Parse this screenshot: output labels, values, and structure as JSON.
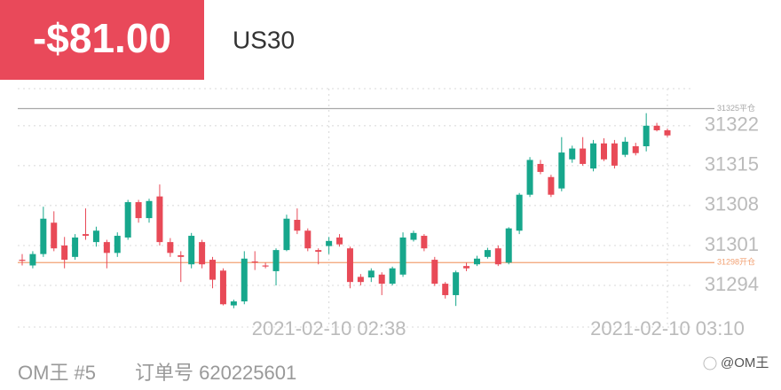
{
  "header": {
    "pnl": "-$81.00",
    "symbol": "US30"
  },
  "chart_data": {
    "type": "candlestick",
    "x": [
      "2021-02-10 02:09",
      "2021-02-10 02:10",
      "2021-02-10 02:11",
      "2021-02-10 02:12",
      "2021-02-10 02:13",
      "2021-02-10 02:14",
      "2021-02-10 02:15",
      "2021-02-10 02:16",
      "2021-02-10 02:17",
      "2021-02-10 02:18",
      "2021-02-10 02:19",
      "2021-02-10 02:20",
      "2021-02-10 02:21",
      "2021-02-10 02:22",
      "2021-02-10 02:23",
      "2021-02-10 02:24",
      "2021-02-10 02:25",
      "2021-02-10 02:26",
      "2021-02-10 02:27",
      "2021-02-10 02:28",
      "2021-02-10 02:29",
      "2021-02-10 02:30",
      "2021-02-10 02:31",
      "2021-02-10 02:32",
      "2021-02-10 02:33",
      "2021-02-10 02:34",
      "2021-02-10 02:35",
      "2021-02-10 02:36",
      "2021-02-10 02:37",
      "2021-02-10 02:38",
      "2021-02-10 02:39",
      "2021-02-10 02:40",
      "2021-02-10 02:41",
      "2021-02-10 02:42",
      "2021-02-10 02:43",
      "2021-02-10 02:44",
      "2021-02-10 02:45",
      "2021-02-10 02:46",
      "2021-02-10 02:47",
      "2021-02-10 02:48",
      "2021-02-10 02:49",
      "2021-02-10 02:50",
      "2021-02-10 02:51",
      "2021-02-10 02:52",
      "2021-02-10 02:53",
      "2021-02-10 02:54",
      "2021-02-10 02:55",
      "2021-02-10 02:56",
      "2021-02-10 02:57",
      "2021-02-10 02:58",
      "2021-02-10 02:59",
      "2021-02-10 03:00",
      "2021-02-10 03:01",
      "2021-02-10 03:02",
      "2021-02-10 03:03",
      "2021-02-10 03:04",
      "2021-02-10 03:05",
      "2021-02-10 03:06",
      "2021-02-10 03:07",
      "2021-02-10 03:08",
      "2021-02-10 03:09",
      "2021-02-10 03:10"
    ],
    "open": [
      31298.5,
      31297.5,
      31299.5,
      31305,
      31301,
      31299,
      31303,
      31301.6,
      31301.6,
      31299.7,
      31302.4,
      31308.6,
      31305.8,
      31309.6,
      31301.6,
      31299.3,
      31297.7,
      31301.6,
      31298.5,
      31296.6,
      31290.5,
      31291.2,
      31298.2,
      31297.5,
      31296.5,
      31300.2,
      31305.5,
      31303.6,
      31300.2,
      31300.9,
      31302.4,
      31300.5,
      31295.5,
      31295.4,
      31295.9,
      31294.3,
      31295.9,
      31302,
      31302.7,
      31298.5,
      31294.3,
      31292.3,
      31297.4,
      31297.7,
      31299,
      31300.5,
      31298,
      31303.6,
      31309.9,
      31315.3,
      31313,
      31311,
      31316.1,
      31318,
      31314.5,
      31318.9,
      31318.9,
      31316.9,
      31318.4,
      31318.4,
      31322,
      31321.2
    ],
    "high": [
      31299.5,
      31300,
      31307.8,
      31307,
      31302.5,
      31303,
      31307.5,
      31304.3,
      31302,
      31303.3,
      31309,
      31309,
      31309.2,
      31311.7,
      31302.3,
      31300,
      31303.2,
      31302,
      31299,
      31297,
      31291.5,
      31300,
      31300,
      31298,
      31300.5,
      31306.4,
      31307.5,
      31304,
      31300.5,
      31302.5,
      31303,
      31300.8,
      31296,
      31297,
      31296.3,
      31297.3,
      31303.3,
      31303.6,
      31303,
      31299,
      31294.6,
      31296.6,
      31298,
      31299.2,
      31300.6,
      31301,
      31304.2,
      31310.2,
      31316.5,
      31316,
      31313.4,
      31320,
      31318.5,
      31320,
      31319.5,
      31319.8,
      31319.5,
      31320,
      31319,
      31324.2,
      31322.5,
      31321.5
    ],
    "low": [
      31297.5,
      31297,
      31299,
      31300,
      31297,
      31298.5,
      31302,
      31300.8,
      31297,
      31299,
      31302,
      31305,
      31305,
      31301,
      31299,
      31294.6,
      31297,
      31297,
      31293.5,
      31290.5,
      31290,
      31290.7,
      31296.7,
      31297,
      31294,
      31300,
      31303,
      31300,
      31297.7,
      31299.5,
      31300.8,
      31293.5,
      31294,
      31294.6,
      31292.3,
      31294,
      31295.5,
      31301.7,
      31300,
      31293.9,
      31291.7,
      31290.4,
      31296.5,
      31297.4,
      31298.7,
      31297.4,
      31297.7,
      31303,
      31309.5,
      31313.5,
      31309.5,
      31310.5,
      31315.5,
      31315,
      31314,
      31315.8,
      31314.5,
      31316.5,
      31316.8,
      31317.5,
      31321,
      31320
    ],
    "close": [
      31298.4,
      31299.5,
      31305.7,
      31300.5,
      31298.5,
      31302.4,
      31302.7,
      31303.6,
      31299.7,
      31302.7,
      31308.6,
      31305.8,
      31308.8,
      31301.6,
      31299.7,
      31299,
      31302.7,
      31297.7,
      31295,
      31290.7,
      31291.2,
      31298.7,
      31298.1,
      31297.4,
      31300.2,
      31305.7,
      31303.6,
      31300.5,
      31299.9,
      31301.8,
      31301.2,
      31294.6,
      31294.6,
      31296.6,
      31294.3,
      31297,
      31302.4,
      31303.2,
      31300.5,
      31294.3,
      31292.3,
      31296.3,
      31297,
      31298.7,
      31300.2,
      31297.7,
      31304,
      31309.9,
      31316,
      31313.9,
      31309.9,
      31317.3,
      31318,
      31315.3,
      31318.9,
      31316.1,
      31315,
      31319.2,
      31317.2,
      31322,
      31321.2,
      31320.3
    ],
    "up_color": "#17a78c",
    "down_color": "#e84a57",
    "ylim": [
      31286.7,
      31328.5
    ],
    "yticks": [
      31294,
      31301,
      31308,
      31315,
      31322
    ],
    "xticks": [
      "2021-02-10 02:38",
      "2021-02-10 03:10"
    ],
    "lines": [
      {
        "value": 31325,
        "label": "31325平仓",
        "color": "#a8a8a8"
      },
      {
        "value": 31298,
        "label": "31298开仓",
        "color": "#f2a072"
      }
    ],
    "grid": true
  },
  "footer": {
    "account": "OM王 #5",
    "order": "订单号 620225601",
    "watermark": "@OM王"
  }
}
